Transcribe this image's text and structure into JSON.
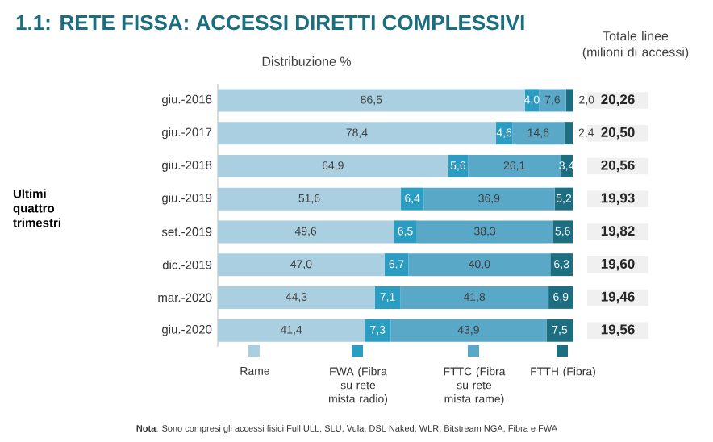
{
  "chart_data": {
    "type": "bar",
    "orientation": "horizontal",
    "stacked": true,
    "title": "1.1: RETE FISSA: ACCESSI DIRETTI COMPLESSIVI",
    "subtitle": "Distribuzione %",
    "categories": [
      "giu.-2016",
      "giu.-2017",
      "giu.-2018",
      "giu.-2019",
      "set.-2019",
      "dic.-2019",
      "mar.-2020",
      "giu.-2020"
    ],
    "xlim": [
      0,
      100
    ],
    "tick_labels": "y",
    "legend": "bottom",
    "series": [
      {
        "name": "Rame",
        "color": "#a9cfe1",
        "values": [
          86.5,
          78.4,
          64.9,
          51.6,
          49.6,
          47.0,
          44.3,
          41.4
        ],
        "value_labels": [
          "86,5",
          "78,4",
          "64,9",
          "51,6",
          "49,6",
          "47,0",
          "44,3",
          "41,4"
        ]
      },
      {
        "name": "FWA (Fibra su rete mista radio)",
        "color": "#2b9cc2",
        "values": [
          4.0,
          4.6,
          5.6,
          6.4,
          6.5,
          6.7,
          7.1,
          7.3
        ],
        "value_labels": [
          "4,0",
          "4,6",
          "5,6",
          "6,4",
          "6,5",
          "6,7",
          "7,1",
          "7,3"
        ]
      },
      {
        "name": "FTTC (Fibra su rete mista rame)",
        "color": "#5aa8c8",
        "values": [
          7.6,
          14.6,
          26.1,
          36.9,
          38.3,
          40.0,
          41.8,
          43.9
        ],
        "value_labels": [
          "7,6",
          "14,6",
          "26,1",
          "36,9",
          "38,3",
          "40,0",
          "41,8",
          "43,9"
        ]
      },
      {
        "name": "FTTH (Fibra)",
        "color": "#1c6e80",
        "values": [
          2.0,
          2.4,
          3.4,
          5.2,
          5.6,
          6.3,
          6.9,
          7.5
        ],
        "value_labels": [
          "2,0",
          "2,4",
          "3,4",
          "5,2",
          "5,6",
          "6,3",
          "6,9",
          "7,5"
        ]
      }
    ],
    "annotations": [
      "Totale linee (milioni di accessi)",
      "20,26",
      "20,50",
      "20,56",
      "19,93",
      "19,82",
      "19,60",
      "19,46",
      "19,56",
      "Ultimi quattro trimestri",
      "**Nota**: Sono compresi gli accessi fisici Full ULL, SLU, Vula, DSL Naked, WLR, Bitstream NGA, Fibra e FWA"
    ]
  }
}
